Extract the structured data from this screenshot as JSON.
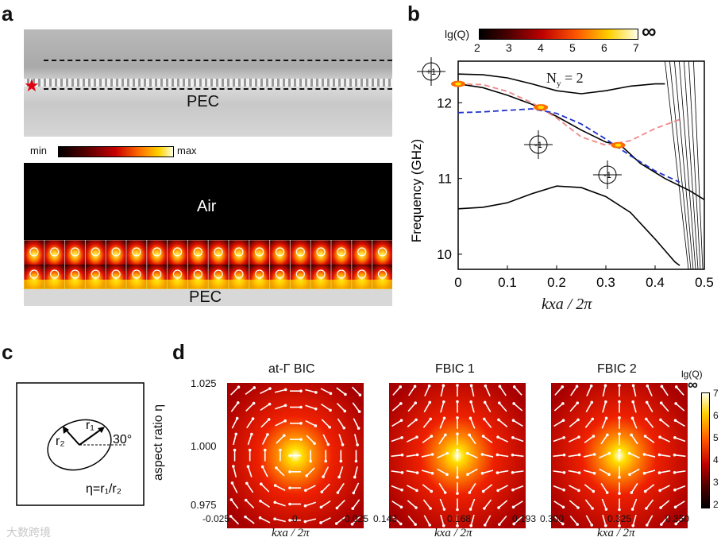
{
  "panel_labels": {
    "a": "a",
    "b": "b",
    "c": "c",
    "d": "d"
  },
  "panel_a": {
    "photo_label": "PEC",
    "colorbar_min": "min",
    "colorbar_max": "max",
    "air_label": "Air",
    "bottom_label": "PEC"
  },
  "panel_b": {
    "colorbar_title": "lg(Q)",
    "colorbar_ticks": [
      "2",
      "3",
      "4",
      "5",
      "6",
      "7"
    ],
    "infinity": "∞",
    "ny_label": "N",
    "ny_sub": "y",
    "ny_value": " = 2",
    "ylabel": "Frequency (GHz)",
    "xlabel": "kxa / 2π",
    "charge_plus": "+1",
    "charge_minus": "-1"
  },
  "panel_c": {
    "r1": "r₁",
    "r2": "r₂",
    "angle": "30°",
    "eq": "η=r₁/r₂"
  },
  "panel_d": {
    "titles": [
      "at-Γ BIC",
      "FBIC 1",
      "FBIC 2"
    ],
    "ylabel": "aspect ratio η",
    "yticks": [
      "1.025",
      "1.000",
      "0.975"
    ],
    "xticks": [
      [
        "-0.025",
        "0",
        "-0.025"
      ],
      [
        "0.143",
        "0.168",
        "0.193"
      ],
      [
        "0.300",
        "0.325",
        "0.350"
      ]
    ],
    "xlabel": "kxa / 2π",
    "colorbar_title": "lg(Q)",
    "colorbar_inf": "∞",
    "colorbar_ticks": [
      "7",
      "6",
      "5",
      "4",
      "3",
      "2"
    ]
  },
  "watermark": "大数跨境",
  "chart_data": {
    "type": "line",
    "title": "",
    "xlabel": "kxa / 2π",
    "ylabel": "Frequency (GHz)",
    "xlim": [
      0,
      0.5
    ],
    "ylim": [
      9.8,
      12.55
    ],
    "xticks": [
      0,
      0.1,
      0.2,
      0.3,
      0.4,
      0.5
    ],
    "yticks": [
      10,
      11,
      12
    ],
    "series": [
      {
        "name": "band-top",
        "style": "solid-black",
        "x": [
          0,
          0.05,
          0.1,
          0.15,
          0.2,
          0.25,
          0.3,
          0.35,
          0.4,
          0.42
        ],
        "y": [
          12.38,
          12.37,
          12.33,
          12.25,
          12.16,
          12.12,
          12.16,
          12.22,
          12.25,
          12.25
        ]
      },
      {
        "name": "band-main",
        "style": "solid-black",
        "x": [
          0,
          0.05,
          0.1,
          0.15,
          0.2,
          0.25,
          0.3,
          0.33,
          0.37,
          0.42,
          0.47,
          0.5
        ],
        "y": [
          12.25,
          12.2,
          12.1,
          11.98,
          11.82,
          11.64,
          11.48,
          11.44,
          11.2,
          11.0,
          10.84,
          10.72
        ]
      },
      {
        "name": "band-low",
        "style": "solid-black",
        "x": [
          0,
          0.05,
          0.1,
          0.15,
          0.2,
          0.25,
          0.3,
          0.35,
          0.4,
          0.44,
          0.45
        ],
        "y": [
          10.6,
          10.62,
          10.68,
          10.8,
          10.9,
          10.88,
          10.76,
          10.55,
          10.2,
          9.9,
          9.85
        ]
      },
      {
        "name": "blue-dashed",
        "style": "dashed-blue",
        "x": [
          0,
          0.05,
          0.1,
          0.15,
          0.2,
          0.25,
          0.3,
          0.35,
          0.4,
          0.45
        ],
        "y": [
          11.87,
          11.88,
          11.9,
          11.92,
          11.86,
          11.72,
          11.52,
          11.3,
          11.1,
          10.95
        ]
      },
      {
        "name": "pink-dashed",
        "style": "dashed-pink",
        "x": [
          0,
          0.05,
          0.1,
          0.15,
          0.2,
          0.25,
          0.3,
          0.35,
          0.4,
          0.45
        ],
        "y": [
          12.25,
          12.24,
          12.15,
          12.0,
          11.8,
          11.55,
          11.44,
          11.5,
          11.66,
          11.78
        ]
      }
    ],
    "bic_points": [
      {
        "x": 0,
        "y": 12.25,
        "label": "+1"
      },
      {
        "x": 0.168,
        "y": 11.94,
        "label": "-1"
      },
      {
        "x": 0.325,
        "y": 11.44,
        "label": "-1"
      }
    ],
    "colorbar": {
      "label": "lg(Q)",
      "range": [
        2,
        7
      ]
    }
  }
}
